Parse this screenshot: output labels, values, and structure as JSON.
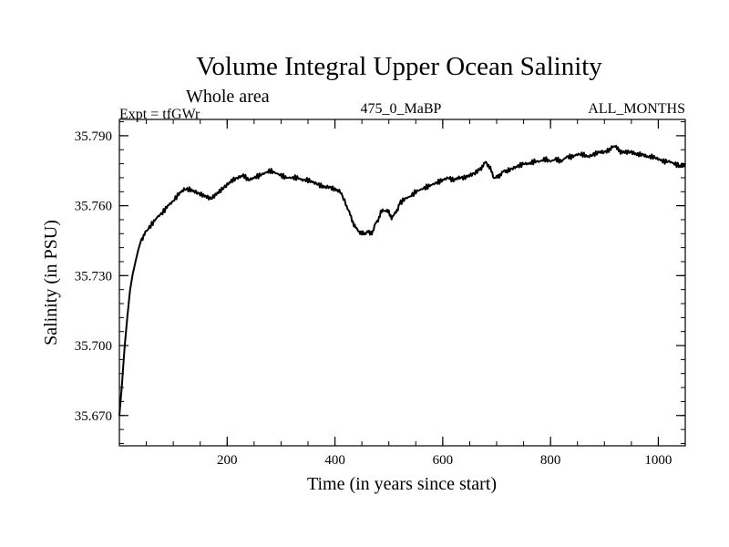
{
  "chart_data": {
    "type": "line",
    "title": "Volume Integral Upper Ocean Salinity",
    "subtitle": "Whole area",
    "left_annotation": "Expt = tfGWr",
    "center_annotation": "475_0_MaBP",
    "right_annotation": "ALL_MONTHS",
    "xlabel": "Time (in years since start)",
    "ylabel": "Salinity (in PSU)",
    "xlim": [
      0,
      1050
    ],
    "ylim": [
      35.657,
      35.797
    ],
    "x_ticks": [
      200,
      400,
      600,
      800,
      1000
    ],
    "x_tick_labels": [
      "200",
      "400",
      "600",
      "800",
      "1000"
    ],
    "x_minor_step": 50,
    "y_ticks": [
      35.67,
      35.7,
      35.73,
      35.76,
      35.79
    ],
    "y_tick_labels": [
      "35.670",
      "35.700",
      "35.730",
      "35.760",
      "35.790"
    ],
    "y_minor_step": 0.006,
    "grid": false,
    "series": [
      {
        "name": "Salinity",
        "color": "#000000",
        "x": [
          0,
          5,
          10,
          15,
          20,
          25,
          30,
          35,
          40,
          45,
          50,
          60,
          70,
          80,
          90,
          100,
          110,
          120,
          130,
          140,
          150,
          160,
          170,
          180,
          190,
          200,
          210,
          220,
          230,
          240,
          250,
          260,
          270,
          280,
          290,
          300,
          310,
          320,
          330,
          340,
          350,
          360,
          370,
          380,
          390,
          400,
          410,
          420,
          425,
          430,
          435,
          440,
          445,
          450,
          455,
          460,
          465,
          470,
          475,
          480,
          485,
          490,
          495,
          500,
          505,
          510,
          515,
          520,
          530,
          540,
          550,
          560,
          570,
          580,
          590,
          600,
          610,
          620,
          630,
          640,
          650,
          660,
          670,
          675,
          680,
          685,
          690,
          695,
          700,
          705,
          710,
          715,
          720,
          730,
          740,
          750,
          760,
          770,
          780,
          790,
          800,
          810,
          820,
          830,
          840,
          850,
          860,
          870,
          880,
          890,
          900,
          910,
          915,
          920,
          925,
          930,
          940,
          950,
          960,
          970,
          980,
          990,
          1000,
          1010,
          1020,
          1030,
          1040,
          1045,
          1050
        ],
        "values": [
          35.67,
          35.684,
          35.7,
          35.713,
          35.724,
          35.731,
          35.736,
          35.741,
          35.745,
          35.747,
          35.749,
          35.752,
          35.755,
          35.757,
          35.76,
          35.762,
          35.765,
          35.767,
          35.767,
          35.766,
          35.765,
          35.764,
          35.763,
          35.765,
          35.767,
          35.769,
          35.771,
          35.772,
          35.773,
          35.771,
          35.772,
          35.773,
          35.774,
          35.775,
          35.774,
          35.773,
          35.772,
          35.772,
          35.772,
          35.771,
          35.771,
          35.77,
          35.769,
          35.768,
          35.768,
          35.767,
          35.766,
          35.761,
          35.758,
          35.755,
          35.752,
          35.75,
          35.749,
          35.748,
          35.748,
          35.749,
          35.748,
          35.749,
          35.752,
          35.754,
          35.757,
          35.758,
          35.758,
          35.757,
          35.755,
          35.756,
          35.758,
          35.761,
          35.763,
          35.764,
          35.766,
          35.767,
          35.768,
          35.769,
          35.77,
          35.771,
          35.772,
          35.771,
          35.772,
          35.772,
          35.773,
          35.774,
          35.776,
          35.777,
          35.779,
          35.777,
          35.775,
          35.772,
          35.772,
          35.773,
          35.774,
          35.775,
          35.775,
          35.776,
          35.777,
          35.778,
          35.778,
          35.779,
          35.779,
          35.78,
          35.779,
          35.78,
          35.779,
          35.781,
          35.781,
          35.782,
          35.782,
          35.781,
          35.782,
          35.783,
          35.783,
          35.784,
          35.785,
          35.786,
          35.784,
          35.783,
          35.783,
          35.783,
          35.782,
          35.782,
          35.781,
          35.781,
          35.78,
          35.779,
          35.779,
          35.778,
          35.777,
          35.777,
          35.778
        ]
      }
    ]
  }
}
